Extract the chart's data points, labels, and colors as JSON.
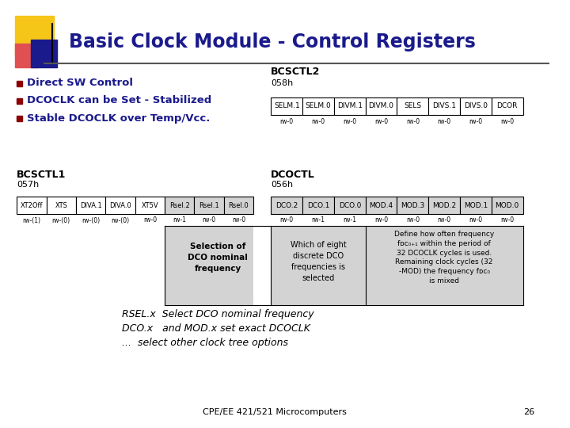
{
  "title": "Basic Clock Module - Control Registers",
  "title_color": "#1a1a8c",
  "bg_color": "#ffffff",
  "bullet_points": [
    "Direct SW Control",
    "DCOCLK can be Set - Stabilized",
    "Stable DCOCLK over Temp/Vcc."
  ],
  "bcsctl2_label": "BCSCTL2",
  "bcsctl2_addr": "058h",
  "bcsctl2_fields": [
    "SELM.1",
    "SELM.0",
    "DIVM.1",
    "DIVM.0",
    "SELS",
    "DIVS.1",
    "DIVS.0",
    "DCOR"
  ],
  "bcsctl2_rw": [
    "rw-0",
    "rw-0",
    "rw-0",
    "rw-0",
    "rw-0",
    "rw-0",
    "rw-0",
    "rw-0"
  ],
  "bcsctl1_label": "BCSCTL1",
  "bcsctl1_addr": "057h",
  "bcsctl1_fields": [
    "XT2Off",
    "XTS",
    "DIVA.1",
    "DIVA.0",
    "XT5V",
    "Rsel.2",
    "Rsel.1",
    "Rsel.0"
  ],
  "bcsctl1_rw": [
    "rw-(1)",
    "rw-(0)",
    "rw-(0)",
    "rw-(0)",
    "rw-0",
    "rw-1",
    "rw-0",
    "rw-0"
  ],
  "bcsctl1_shaded": [
    5,
    6,
    7
  ],
  "dcoctl_label": "DCOCTL",
  "dcoctl_addr": "056h",
  "dcoctl_fields": [
    "DCO.2",
    "DCO.1",
    "DCO.0",
    "MOD.4",
    "MOD.3",
    "MOD.2",
    "MOD.1",
    "MOD.0"
  ],
  "dcoctl_rw": [
    "rw-0",
    "rw-1",
    "rw-1",
    "rw-0",
    "rw-0",
    "rw-0",
    "rw-0",
    "rw-0"
  ],
  "dcoctl_shaded": [
    0,
    1,
    2,
    3,
    4,
    5,
    6,
    7
  ],
  "desc_col1_title": "Selection of\nDCO nominal\nfrequency",
  "desc_col2": "Which of eight\ndiscrete DCO\nfrequencies is\nselected",
  "desc_col3": "Define how often frequency\nfᴅᴄ₀₊₁ within the period of\n32 DCOCLK cycles is used.\nRemaining clock cycles (32\n-MOD) the frequency fᴅᴄ₀\nis mixed",
  "footer_lines": [
    "RSEL.x  Select DCO nominal frequency",
    "DCO.x   and MOD.x set exact DCOCLK",
    "...  select other clock tree options"
  ],
  "page_label": "CPE/EE 421/521 Microcomputers",
  "page_num": "26",
  "header_bg": "#ffffff",
  "cell_bg_normal": "#ffffff",
  "cell_bg_shaded": "#d3d3d3",
  "border_color": "#000000",
  "text_color": "#000000",
  "bullet_color": "#8b0000"
}
